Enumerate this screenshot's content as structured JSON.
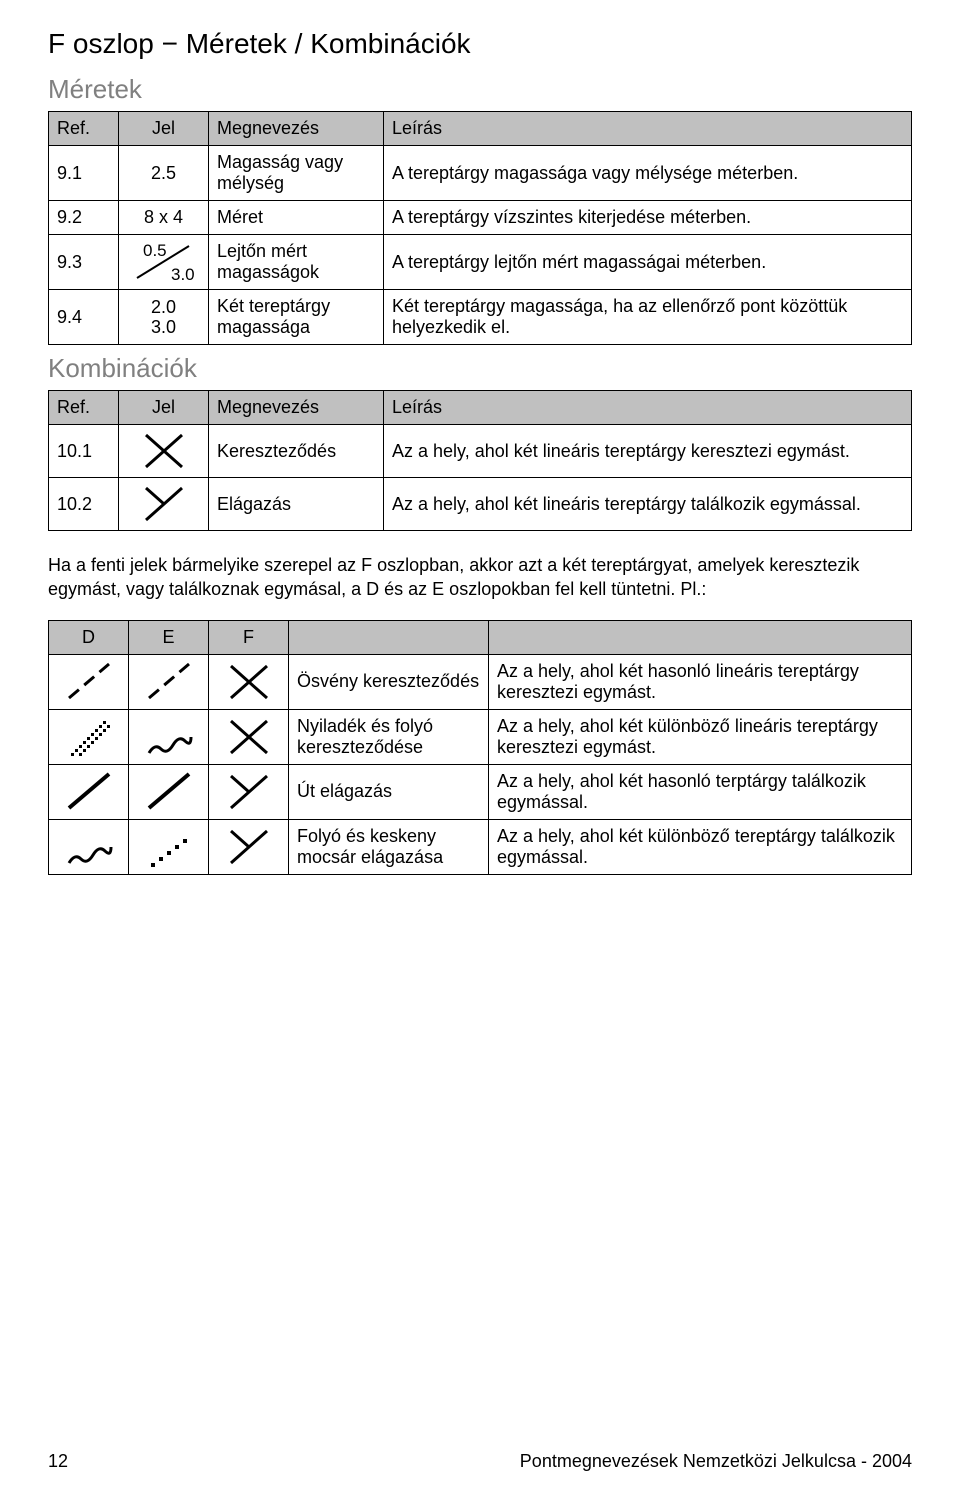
{
  "page": {
    "title": "F oszlop − Méretek / Kombinációk",
    "section1_title": "Méretek",
    "section2_title": "Kombinációk",
    "note": "Ha a fenti jelek bármelyike szerepel az F oszlopban, akkor azt a két tereptárgyat, amelyek keresztezik egymást, vagy találkoznak egymásal, a D és az E oszlopokban fel kell tüntetni. Pl.:",
    "footer_page": "12",
    "footer_text": "Pontmegnevezések Nemzetközi Jelkulcsa  - 2004"
  },
  "colors": {
    "header_bg": "#c0c0c0",
    "gray_text": "#808080",
    "border": "#000000",
    "body_text": "#000000",
    "background": "#ffffff"
  },
  "table1": {
    "headers": {
      "ref": "Ref.",
      "jel": "Jel",
      "name": "Megnevezés",
      "desc": "Leírás"
    },
    "rows": [
      {
        "ref": "9.1",
        "jel": "2.5",
        "jel_type": "text",
        "name": "Magasság vagy mélység",
        "desc": "A tereptárgy magassága vagy mélysége méterben."
      },
      {
        "ref": "9.2",
        "jel": "8 x 4",
        "jel_type": "text",
        "name": "Méret",
        "desc": "A tereptárgy vízszintes kiterjedése méterben."
      },
      {
        "ref": "9.3",
        "jel_type": "slope",
        "jel_top": "0.5",
        "jel_bot": "3.0",
        "name": "Lejtőn mért magasságok",
        "desc": "A tereptárgy lejtőn mért magasságai méterben."
      },
      {
        "ref": "9.4",
        "jel_type": "stacked",
        "jel_top": "2.0",
        "jel_bot": "3.0",
        "name": "Két tereptárgy magassága",
        "desc": "Két tereptárgy magassága, ha az ellenőrző pont közöttük helyezkedik el."
      }
    ]
  },
  "table2": {
    "headers": {
      "ref": "Ref.",
      "jel": "Jel",
      "name": "Megnevezés",
      "desc": "Leírás"
    },
    "rows": [
      {
        "ref": "10.1",
        "symbol": "cross",
        "name": "Kereszteződés",
        "desc": "Az a hely, ahol két lineáris tereptárgy keresztezi egymást."
      },
      {
        "ref": "10.2",
        "symbol": "junction",
        "name": "Elágazás",
        "desc": "Az a hely, ahol két lineáris tereptárgy találkozik egymással."
      }
    ]
  },
  "table3": {
    "headers": {
      "d": "D",
      "e": "E",
      "f": "F",
      "name": "",
      "desc": ""
    },
    "rows": [
      {
        "d": "path",
        "e": "path",
        "f": "cross",
        "name": "Ösvény kereszteződés",
        "desc": "Az a hely, ahol két hasonló lineáris tereptárgy keresztezi egymást."
      },
      {
        "d": "ride",
        "e": "stream",
        "f": "cross",
        "name": "Nyiladék és folyó kereszteződése",
        "desc": "Az a hely, ahol két különböző lineáris tereptárgy keresztezi egymást."
      },
      {
        "d": "road",
        "e": "road",
        "f": "junction",
        "name": "Út elágazás",
        "desc": "Az a hely, ahol két hasonló terptárgy találkozik egymással."
      },
      {
        "d": "stream",
        "e": "narrow-marsh",
        "f": "junction",
        "name": "Folyó és keskeny mocsár elágazása",
        "desc": "Az a hely, ahol két különböző tereptárgy találkozik egymással."
      }
    ]
  }
}
